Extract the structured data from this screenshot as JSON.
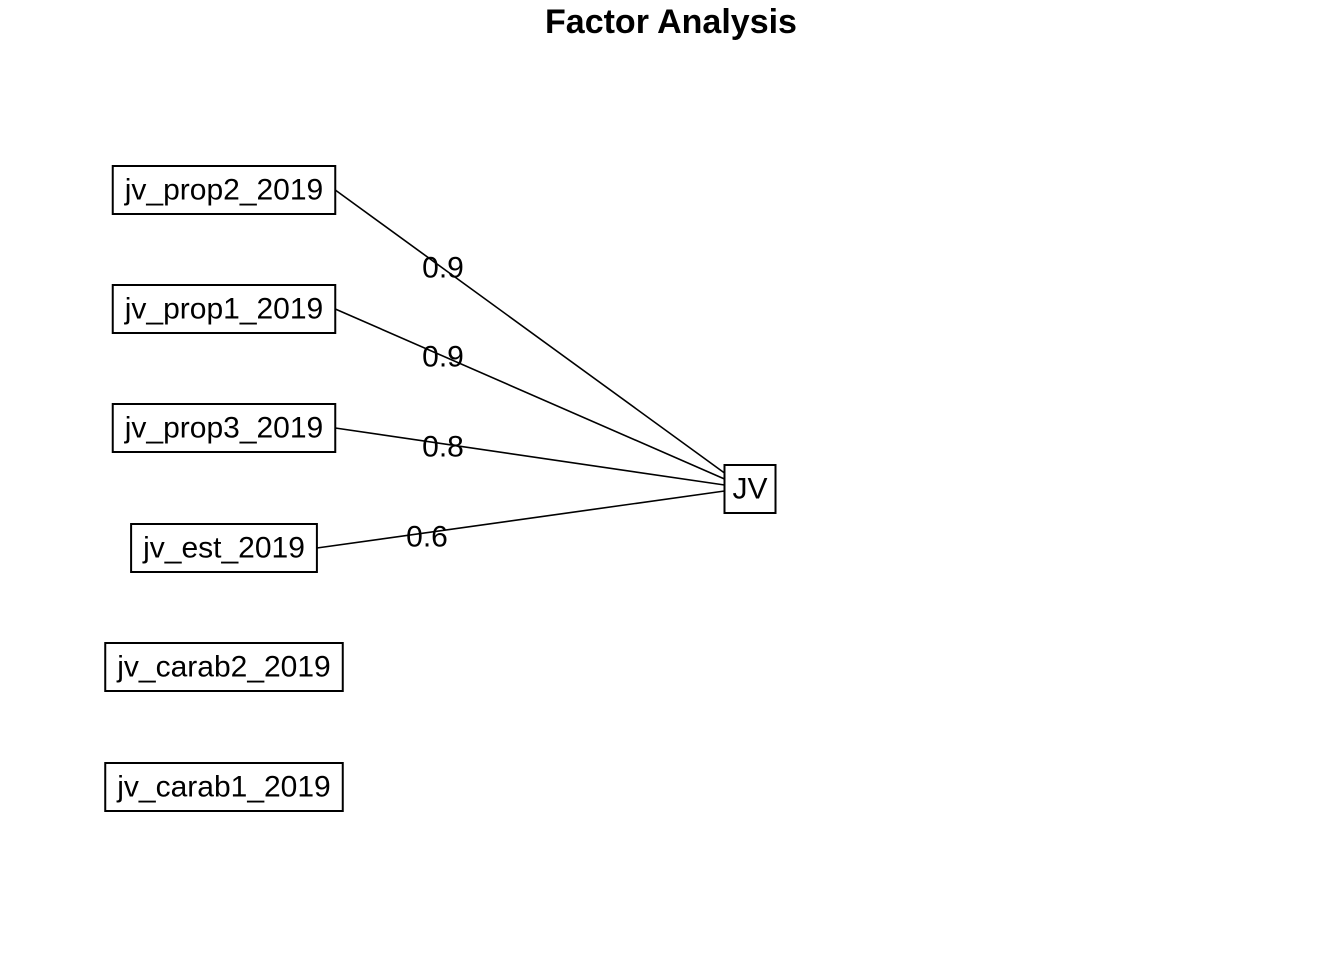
{
  "title": "Factor Analysis",
  "factor": {
    "id": "JV",
    "label": "JV"
  },
  "variables": [
    {
      "id": "jv_prop2_2019",
      "label": "jv_prop2_2019"
    },
    {
      "id": "jv_prop1_2019",
      "label": "jv_prop1_2019"
    },
    {
      "id": "jv_prop3_2019",
      "label": "jv_prop3_2019"
    },
    {
      "id": "jv_est_2019",
      "label": "jv_est_2019"
    },
    {
      "id": "jv_carab2_2019",
      "label": "jv_carab2_2019"
    },
    {
      "id": "jv_carab1_2019",
      "label": "jv_carab1_2019"
    }
  ],
  "loadings": [
    {
      "from": "JV",
      "to": "jv_prop2_2019",
      "label": "0.9"
    },
    {
      "from": "JV",
      "to": "jv_prop1_2019",
      "label": "0.9"
    },
    {
      "from": "JV",
      "to": "jv_prop3_2019",
      "label": "0.8"
    },
    {
      "from": "JV",
      "to": "jv_est_2019",
      "label": "0.6"
    }
  ],
  "colors": {
    "stroke": "#000000",
    "background": "#ffffff",
    "text": "#000000"
  }
}
